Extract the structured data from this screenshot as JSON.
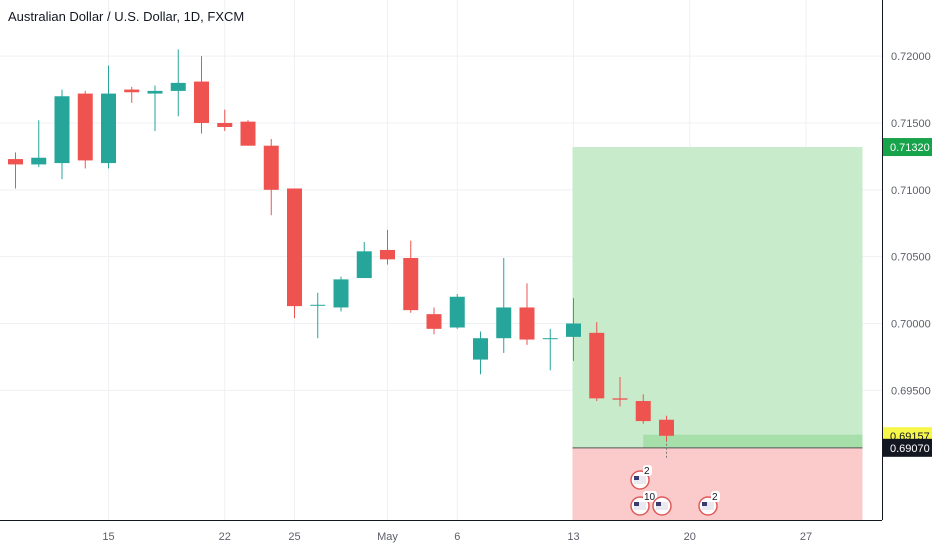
{
  "title": "Australian Dollar / U.S. Dollar, 1D, FXCM",
  "colors": {
    "up": "#26a69a",
    "down": "#ef5350",
    "grid": "#eef0f3",
    "axis_text": "#5d606b",
    "profit_zone": "#c8ebcb",
    "loss_zone": "#fbcaca",
    "target_label_bg": "#16a34a",
    "current_label_bg": "#f7f74a",
    "entry_label_bg": "#131722"
  },
  "price_axis": {
    "ticks": [
      "0.72000",
      "0.71500",
      "0.71000",
      "0.70500",
      "0.70000",
      "0.69500"
    ],
    "labels": {
      "target": "0.71320",
      "current": "0.69157",
      "entry": "0.69070"
    }
  },
  "time_axis": {
    "ticks": [
      "15",
      "22",
      "25",
      "May",
      "6",
      "13",
      "20",
      "27"
    ]
  },
  "events": [
    {
      "icon": "country-flag-icon",
      "count": "2"
    },
    {
      "icon": "us-flag-icon",
      "count": "10"
    },
    {
      "icon": "us-flag-icon",
      "count": ""
    },
    {
      "icon": "us-flag-icon",
      "count": "2"
    }
  ],
  "chart_data": {
    "type": "candlestick",
    "symbol": "Australian Dollar / U.S. Dollar",
    "interval": "1D",
    "source": "FXCM",
    "ylim": [
      0.6853,
      0.7242
    ],
    "price_ticks": [
      0.72,
      0.715,
      0.71,
      0.705,
      0.7,
      0.695
    ],
    "x_ticks": [
      {
        "label": "15",
        "index": 4
      },
      {
        "label": "22",
        "index": 9
      },
      {
        "label": "25",
        "index": 12
      },
      {
        "label": "May",
        "index": 16
      },
      {
        "label": "6",
        "index": 19
      },
      {
        "label": "13",
        "index": 24
      },
      {
        "label": "20",
        "index": 29
      },
      {
        "label": "27",
        "index": 34
      }
    ],
    "candles": [
      {
        "o": 0.7123,
        "h": 0.7128,
        "l": 0.7101,
        "c": 0.7119
      },
      {
        "o": 0.7119,
        "h": 0.7152,
        "l": 0.7117,
        "c": 0.7124
      },
      {
        "o": 0.712,
        "h": 0.7175,
        "l": 0.7108,
        "c": 0.717
      },
      {
        "o": 0.7172,
        "h": 0.7174,
        "l": 0.7116,
        "c": 0.7122
      },
      {
        "o": 0.712,
        "h": 0.7193,
        "l": 0.7116,
        "c": 0.7172
      },
      {
        "o": 0.7175,
        "h": 0.7177,
        "l": 0.7165,
        "c": 0.7173
      },
      {
        "o": 0.7172,
        "h": 0.7178,
        "l": 0.7144,
        "c": 0.7174
      },
      {
        "o": 0.7174,
        "h": 0.7205,
        "l": 0.7155,
        "c": 0.718
      },
      {
        "o": 0.7181,
        "h": 0.72,
        "l": 0.7142,
        "c": 0.715
      },
      {
        "o": 0.715,
        "h": 0.716,
        "l": 0.7144,
        "c": 0.7147
      },
      {
        "o": 0.7151,
        "h": 0.7152,
        "l": 0.7133,
        "c": 0.7133
      },
      {
        "o": 0.7133,
        "h": 0.7138,
        "l": 0.7081,
        "c": 0.71
      },
      {
        "o": 0.7101,
        "h": 0.7101,
        "l": 0.7004,
        "c": 0.7013
      },
      {
        "o": 0.7014,
        "h": 0.7023,
        "l": 0.6989,
        "c": 0.7014
      },
      {
        "o": 0.7012,
        "h": 0.7035,
        "l": 0.7009,
        "c": 0.7033
      },
      {
        "o": 0.7034,
        "h": 0.7061,
        "l": 0.7034,
        "c": 0.7054
      },
      {
        "o": 0.7055,
        "h": 0.707,
        "l": 0.7044,
        "c": 0.7048
      },
      {
        "o": 0.7049,
        "h": 0.7062,
        "l": 0.7008,
        "c": 0.701
      },
      {
        "o": 0.7007,
        "h": 0.7012,
        "l": 0.6992,
        "c": 0.6996
      },
      {
        "o": 0.6997,
        "h": 0.7022,
        "l": 0.6996,
        "c": 0.702
      },
      {
        "o": 0.6973,
        "h": 0.6994,
        "l": 0.6962,
        "c": 0.6989
      },
      {
        "o": 0.6989,
        "h": 0.7049,
        "l": 0.6978,
        "c": 0.7012
      },
      {
        "o": 0.7012,
        "h": 0.703,
        "l": 0.6984,
        "c": 0.6988
      },
      {
        "o": 0.6989,
        "h": 0.6996,
        "l": 0.6965,
        "c": 0.6989
      },
      {
        "o": 0.699,
        "h": 0.7019,
        "l": 0.6972,
        "c": 0.7
      },
      {
        "o": 0.6993,
        "h": 0.7001,
        "l": 0.6942,
        "c": 0.6944
      },
      {
        "o": 0.6944,
        "h": 0.696,
        "l": 0.6938,
        "c": 0.6943
      },
      {
        "o": 0.6942,
        "h": 0.6947,
        "l": 0.6925,
        "c": 0.6927
      },
      {
        "o": 0.6928,
        "h": 0.6931,
        "l": 0.6912,
        "c": 0.6916
      }
    ],
    "position": {
      "type": "long",
      "entry": 0.6907,
      "target": 0.7132,
      "current": 0.69157,
      "start_index": 24,
      "end_index": 36
    }
  }
}
